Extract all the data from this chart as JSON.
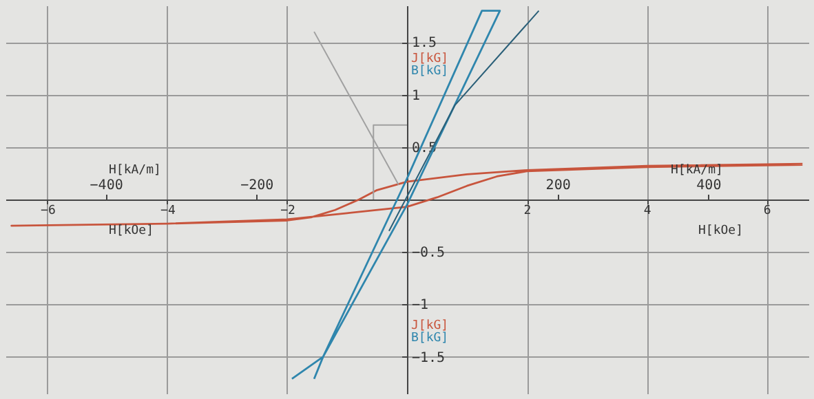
{
  "chart_data": {
    "type": "line",
    "xlabel": "H[kOe]",
    "x2label": "H[kA/m]",
    "xlim": [
      -6.7,
      6.7
    ],
    "xticks": [
      -6,
      -4,
      -2,
      2,
      4,
      6
    ],
    "x2lim": [
      -533.2,
      533.2
    ],
    "x2ticks": [
      -400,
      -200,
      200,
      400
    ],
    "ylim": [
      -1.85,
      1.85
    ],
    "yticks": [
      -1.5,
      -1,
      -0.5,
      0.5,
      1,
      1.5
    ],
    "grid": true,
    "series": [
      {
        "name": "J[kG]",
        "color": "#c8553d",
        "x": [
          6.6,
          4,
          2,
          1,
          0,
          -0.5,
          -0.8,
          -1.2,
          -1.6,
          -2,
          -4,
          -6.6,
          -4,
          -2,
          -1,
          0,
          0.5,
          1,
          1.5,
          2,
          4,
          6.6
        ],
        "values": [
          0.34,
          0.32,
          0.28,
          0.24,
          0.17,
          0.09,
          0,
          -0.1,
          -0.17,
          -0.2,
          -0.23,
          -0.25,
          -0.23,
          -0.19,
          -0.13,
          -0.07,
          0.02,
          0.13,
          0.22,
          0.27,
          0.31,
          0.33
        ]
      },
      {
        "name": "B[kG]",
        "color": "#2f86ad",
        "x": [
          -1.92,
          -1.4,
          0,
          1.25,
          1.55,
          0,
          -1.4,
          -1.55
        ],
        "values": [
          -1.71,
          -1.5,
          0.2,
          1.8,
          1.8,
          -0.05,
          -1.5,
          -1.71
        ]
      },
      {
        "color": "#2a5f78",
        "x": [
          -0.3,
          0.8,
          2.2
        ],
        "values": [
          -0.3,
          0.9,
          1.8
        ]
      },
      {
        "color": "#a0a0a0",
        "x": [
          -1.55,
          -0.14
        ],
        "values": [
          1.6,
          0.14
        ]
      },
      {
        "color": "#a0a0a0",
        "x": [
          -0.56,
          -0.56,
          0
        ],
        "values": [
          0,
          0.71,
          0.71
        ]
      }
    ]
  }
}
